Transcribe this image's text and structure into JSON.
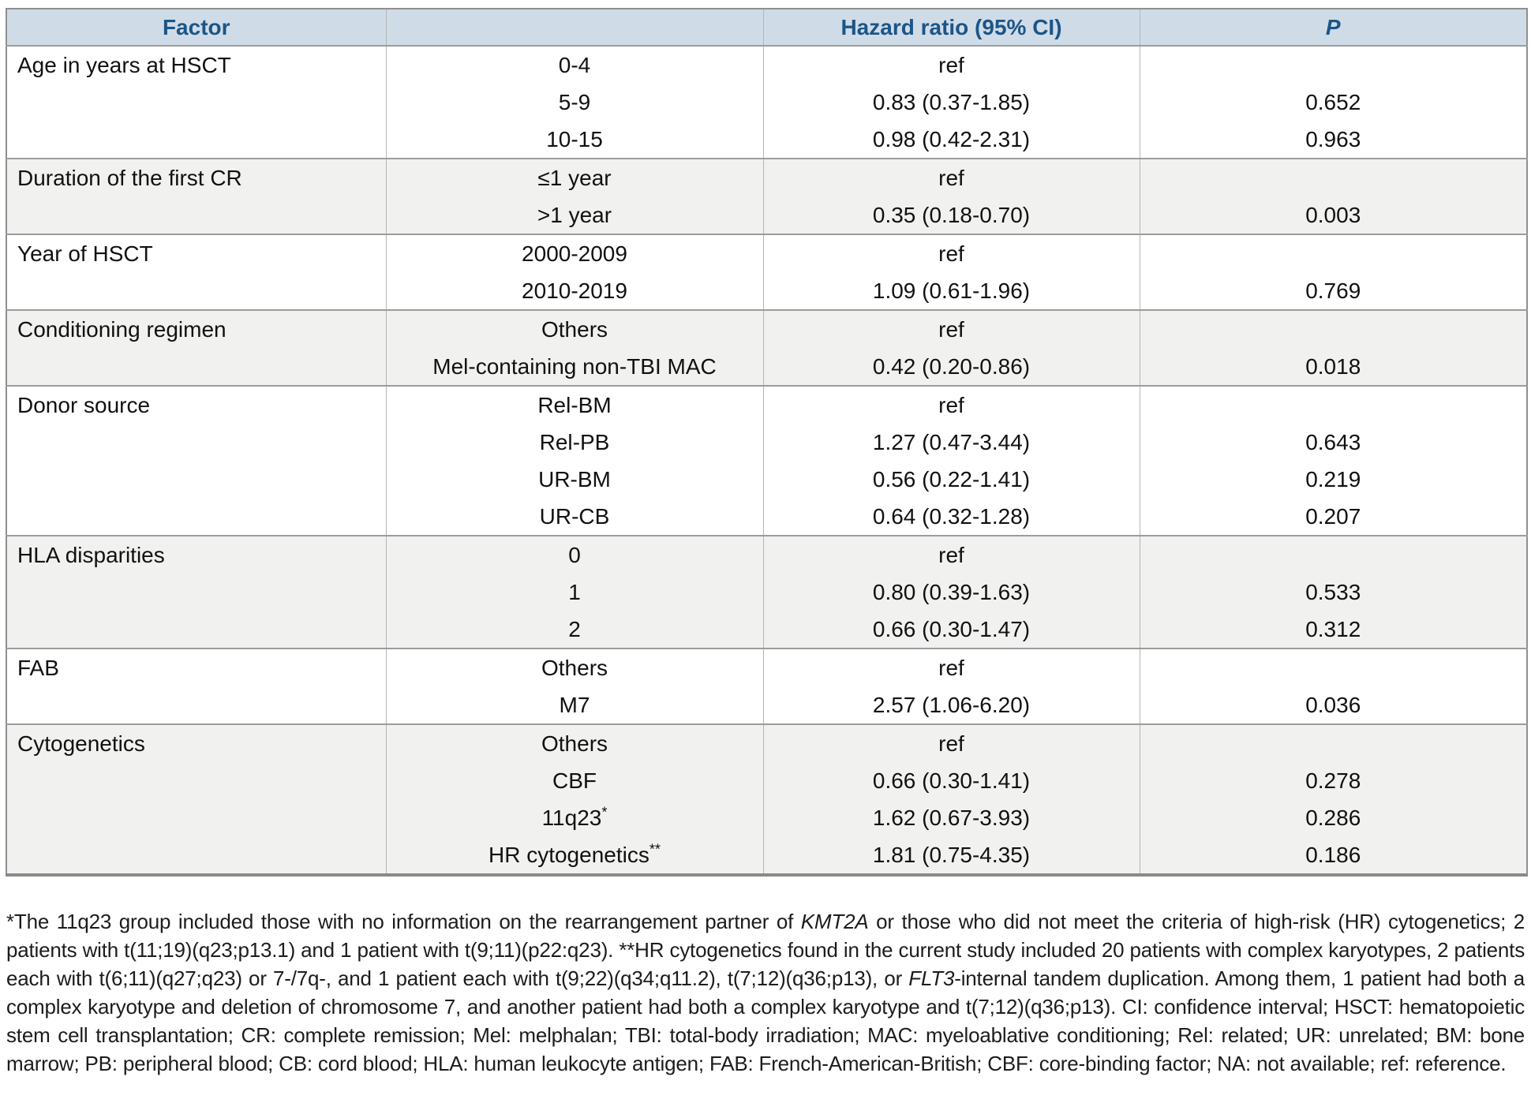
{
  "table": {
    "header": {
      "factor": "Factor",
      "level": "",
      "hazard": "Hazard ratio (95% CI)",
      "p": "P"
    },
    "sections": [
      {
        "factor": "Age in years at HSCT",
        "rows": [
          {
            "level": "0-4",
            "level_sup": "",
            "hr": "ref",
            "p": ""
          },
          {
            "level": "5-9",
            "level_sup": "",
            "hr": "0.83 (0.37-1.85)",
            "p": "0.652"
          },
          {
            "level": "10-15",
            "level_sup": "",
            "hr": "0.98 (0.42-2.31)",
            "p": "0.963"
          }
        ]
      },
      {
        "factor": "Duration of the first CR",
        "rows": [
          {
            "level": "≤1 year",
            "level_sup": "",
            "hr": "ref",
            "p": ""
          },
          {
            "level": ">1 year",
            "level_sup": "",
            "hr": "0.35 (0.18-0.70)",
            "p": "0.003"
          }
        ]
      },
      {
        "factor": "Year of HSCT",
        "rows": [
          {
            "level": "2000-2009",
            "level_sup": "",
            "hr": "ref",
            "p": ""
          },
          {
            "level": "2010-2019",
            "level_sup": "",
            "hr": "1.09 (0.61-1.96)",
            "p": "0.769"
          }
        ]
      },
      {
        "factor": "Conditioning regimen",
        "rows": [
          {
            "level": "Others",
            "level_sup": "",
            "hr": "ref",
            "p": ""
          },
          {
            "level": "Mel-containing non-TBI MAC",
            "level_sup": "",
            "hr": "0.42 (0.20-0.86)",
            "p": "0.018"
          }
        ]
      },
      {
        "factor": "Donor source",
        "rows": [
          {
            "level": "Rel-BM",
            "level_sup": "",
            "hr": "ref",
            "p": ""
          },
          {
            "level": "Rel-PB",
            "level_sup": "",
            "hr": "1.27 (0.47-3.44)",
            "p": "0.643"
          },
          {
            "level": "UR-BM",
            "level_sup": "",
            "hr": "0.56 (0.22-1.41)",
            "p": "0.219"
          },
          {
            "level": "UR-CB",
            "level_sup": "",
            "hr": "0.64 (0.32-1.28)",
            "p": "0.207"
          }
        ]
      },
      {
        "factor": "HLA disparities",
        "rows": [
          {
            "level": "0",
            "level_sup": "",
            "hr": "ref",
            "p": ""
          },
          {
            "level": "1",
            "level_sup": "",
            "hr": "0.80 (0.39-1.63)",
            "p": "0.533"
          },
          {
            "level": "2",
            "level_sup": "",
            "hr": "0.66 (0.30-1.47)",
            "p": "0.312"
          }
        ]
      },
      {
        "factor": "FAB",
        "rows": [
          {
            "level": "Others",
            "level_sup": "",
            "hr": "ref",
            "p": ""
          },
          {
            "level": "M7",
            "level_sup": "",
            "hr": "2.57 (1.06-6.20)",
            "p": "0.036"
          }
        ]
      },
      {
        "factor": "Cytogenetics",
        "rows": [
          {
            "level": "Others",
            "level_sup": "",
            "hr": "ref",
            "p": ""
          },
          {
            "level": "CBF",
            "level_sup": "",
            "hr": "0.66 (0.30-1.41)",
            "p": "0.278"
          },
          {
            "level": "11q23",
            "level_sup": "*",
            "hr": "1.62 (0.67-3.93)",
            "p": "0.286"
          },
          {
            "level": "HR cytogenetics",
            "level_sup": "**",
            "hr": "1.81 (0.75-4.35)",
            "p": "0.186"
          }
        ]
      }
    ]
  },
  "footnote": {
    "segments": [
      {
        "text": "*The 11q23 group included those with no information on the rearrangement partner of ",
        "italic": false
      },
      {
        "text": "KMT2A",
        "italic": true
      },
      {
        "text": " or those who did not meet the criteria of high-risk (HR) cytogenetics; 2 patients with t(11;19)(q23;p13.1) and 1 patient with t(9;11)(p22:q23). **HR cytogenetics found in the current study included 20 patients with complex karyotypes, 2 patients each with t(6;11)(q27;q23) or 7-/7q-, and 1 patient each with t(9;22)(q34;q11.2), t(7;12)(q36;p13), or ",
        "italic": false
      },
      {
        "text": "FLT3",
        "italic": true
      },
      {
        "text": "-internal tandem duplication. Among them, 1 patient had both a complex karyotype and deletion of chromosome 7, and another patient had both a complex karyotype and t(7;12)(q36;p13). CI: confidence interval; HSCT: hematopoietic stem cell transplantation; CR: complete remission; Mel: melphalan; TBI: total-body irradiation; MAC: myeloablative conditioning; Rel: related; UR: unrelated; BM: bone marrow; PB: peripheral blood; CB: cord blood; HLA: human leukocyte antigen; FAB: French-American-British; CBF: core-binding factor; NA: not available; ref: reference.",
        "italic": false
      }
    ]
  },
  "colors": {
    "header_bg": "#cfdce8",
    "header_text": "#1c5587",
    "shaded_row_bg": "#f1f1f0",
    "plain_row_bg": "#ffffff",
    "outer_border": "#8f8f8f",
    "section_border": "#9c9c9c",
    "column_border": "#b5b5b5",
    "body_text": "#111111"
  }
}
